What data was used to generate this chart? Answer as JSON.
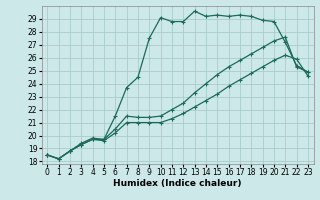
{
  "xlabel": "Humidex (Indice chaleur)",
  "bg_color": "#cce8e8",
  "grid_color": "#aacccc",
  "line_color": "#1a6b5a",
  "xlim": [
    -0.5,
    23.5
  ],
  "ylim": [
    17.8,
    30.0
  ],
  "xticks": [
    0,
    1,
    2,
    3,
    4,
    5,
    6,
    7,
    8,
    9,
    10,
    11,
    12,
    13,
    14,
    15,
    16,
    17,
    18,
    19,
    20,
    21,
    22,
    23
  ],
  "yticks": [
    18,
    19,
    20,
    21,
    22,
    23,
    24,
    25,
    26,
    27,
    28,
    29
  ],
  "series": [
    {
      "x": [
        0,
        1,
        2,
        3,
        4,
        5,
        6,
        7,
        8,
        9,
        10,
        11,
        12,
        13,
        14,
        15,
        16,
        17,
        18,
        19,
        20,
        21,
        22,
        23
      ],
      "y": [
        18.5,
        18.2,
        18.8,
        19.4,
        19.8,
        19.7,
        21.5,
        23.7,
        24.5,
        27.5,
        29.1,
        28.8,
        28.8,
        29.6,
        29.2,
        29.3,
        29.2,
        29.3,
        29.2,
        28.9,
        28.8,
        27.2,
        25.4,
        24.9
      ]
    },
    {
      "x": [
        0,
        1,
        2,
        3,
        4,
        5,
        6,
        7,
        8,
        9,
        10,
        11,
        12,
        13,
        14,
        15,
        16,
        17,
        18,
        19,
        20,
        21,
        22,
        23
      ],
      "y": [
        18.5,
        18.2,
        18.8,
        19.3,
        19.7,
        19.7,
        20.5,
        21.5,
        21.4,
        21.4,
        21.5,
        22.0,
        22.5,
        23.3,
        24.0,
        24.7,
        25.3,
        25.8,
        26.3,
        26.8,
        27.3,
        27.6,
        25.3,
        24.9
      ]
    },
    {
      "x": [
        0,
        1,
        2,
        3,
        4,
        5,
        6,
        7,
        8,
        9,
        10,
        11,
        12,
        13,
        14,
        15,
        16,
        17,
        18,
        19,
        20,
        21,
        22,
        23
      ],
      "y": [
        18.5,
        18.2,
        18.8,
        19.3,
        19.7,
        19.6,
        20.2,
        21.0,
        21.0,
        21.0,
        21.0,
        21.3,
        21.7,
        22.2,
        22.7,
        23.2,
        23.8,
        24.3,
        24.8,
        25.3,
        25.8,
        26.2,
        25.9,
        24.6
      ]
    }
  ],
  "marker": "+",
  "markersize": 3,
  "linewidth": 0.9,
  "xlabel_fontsize": 6.5,
  "tick_fontsize": 5.5
}
